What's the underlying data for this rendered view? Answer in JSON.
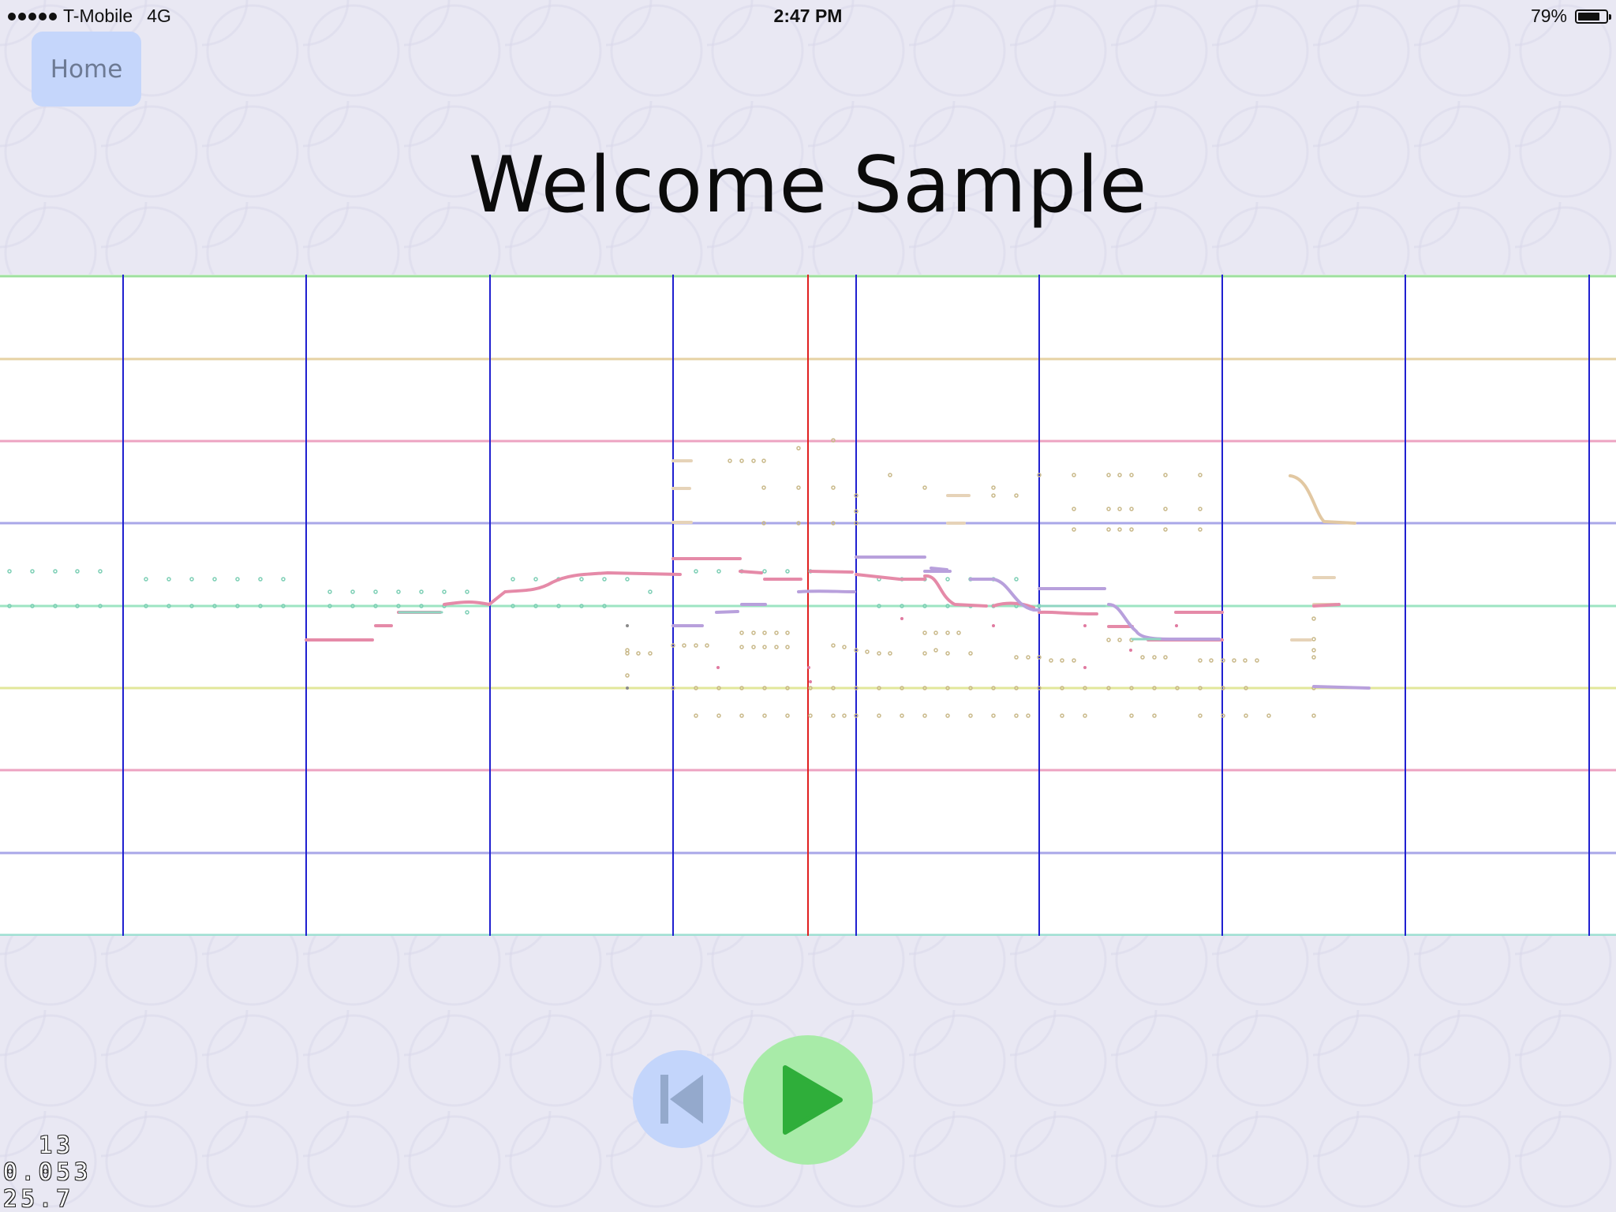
{
  "status_bar": {
    "carrier": "T-Mobile",
    "network": "4G",
    "time": "2:47 PM",
    "battery": "79%",
    "battery_level": 0.79
  },
  "nav": {
    "home_label": "Home"
  },
  "title": "Welcome Sample",
  "playback": {
    "rewind_icon": "skip-to-start-icon",
    "play_icon": "play-icon"
  },
  "debug": {
    "line1": "  13",
    "line2": "0.053",
    "line3": "25.7"
  },
  "colors": {
    "home_button": "#c5d6fb",
    "rewind_button": "#c3d5fb",
    "play_button": "#a8eba8",
    "play_triangle": "#2fae3a",
    "barline": "#2020d0",
    "playhead": "#e02020"
  }
}
